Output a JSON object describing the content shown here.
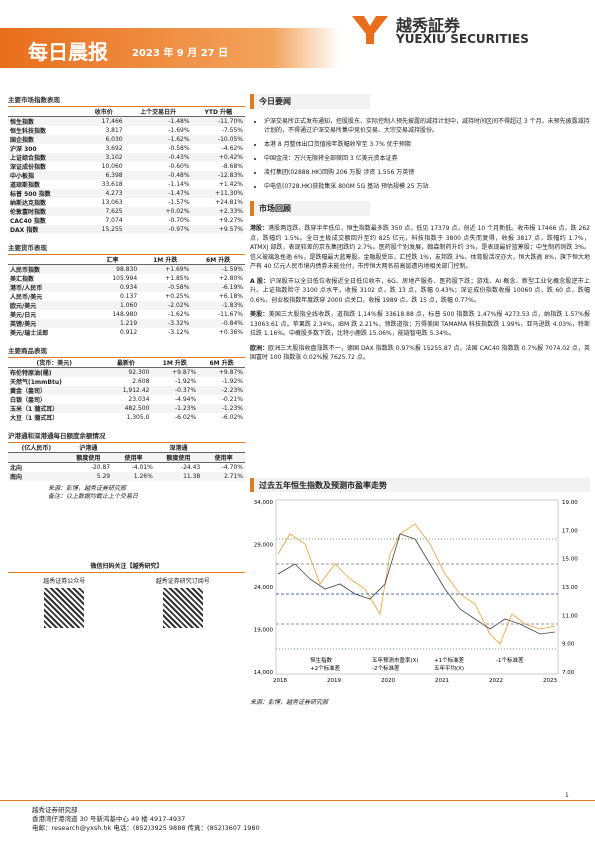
{
  "header": {
    "title": "每日晨报",
    "date": "2023 年 9 月 27 日",
    "logo_cn": "越秀証券",
    "logo_en": "YUEXIU SECURITIES"
  },
  "tables": [
    {
      "title": "主要市场指数表现",
      "header": [
        "",
        "收市价",
        "上个交易日升",
        "YTD 升幅"
      ],
      "rows": [
        [
          "恒生指数",
          "17,466",
          "-1.48%",
          "-11.70%"
        ],
        [
          "恒生科技指数",
          "3,817",
          "-1.69%",
          "-7.55%"
        ],
        [
          "国企指数",
          "6,030",
          "-1.62%",
          "-10.05%"
        ],
        [
          "沪深 300",
          "3,692",
          "-0.58%",
          "-4.62%"
        ],
        [
          "上证综合指数",
          "3,102",
          "-0.43%",
          "+0.42%"
        ],
        [
          "深证成份指数",
          "10,060",
          "-0.60%",
          "-8.68%"
        ],
        [
          "中小板指",
          "6,398",
          "-0.48%",
          "-12.83%"
        ],
        [
          "道琼斯指数",
          "33,618",
          "-1.14%",
          "+1.42%"
        ],
        [
          "标普 500 指数",
          "4,273",
          "-1.47%",
          "+11.30%"
        ],
        [
          "纳斯达克指数",
          "13,063",
          "-1.57%",
          "+24.81%"
        ],
        [
          "伦敦富时指数",
          "7,625",
          "+0.02%",
          "+2.33%"
        ],
        [
          "CAC40 指数",
          "7,074",
          "-0.70%",
          "+9.27%"
        ],
        [
          "DAX 指数",
          "15,255",
          "-0.97%",
          "+9.57%"
        ]
      ]
    },
    {
      "title": "主要货币表现",
      "header": [
        "",
        "汇率",
        "1M 升跌",
        "6M 升跌"
      ],
      "rows": [
        [
          "人民币指数",
          "98.830",
          "+1.69%",
          "-1.59%"
        ],
        [
          "美汇指数",
          "105.994",
          "+1.85%",
          "+2.80%"
        ],
        [
          "港币/人民币",
          "0.934",
          "-0.58%",
          "-6.19%"
        ],
        [
          "人民币/美元",
          "0.137",
          "+0.25%",
          "+6.18%"
        ],
        [
          "欧元/美元",
          "1.060",
          "-2.02%",
          "-1.83%"
        ],
        [
          "美元/日元",
          "148.980",
          "-1.62%",
          "-11.67%"
        ],
        [
          "英镑/美元",
          "1.219",
          "-3.32%",
          "-0.84%"
        ],
        [
          "美元/瑞士法郎",
          "0.912",
          "-3.12%",
          "+0.36%"
        ]
      ]
    },
    {
      "title": "主要商品表现",
      "header": [
        "(货币：美元)",
        "最新价",
        "1M 升跌",
        "6M 升跌"
      ],
      "rows": [
        [
          "布伦特原油(桶)",
          "92.300",
          "+9.87%",
          "+9.87%"
        ],
        [
          "天然气(1mmBtu)",
          "2.608",
          "-1.92%",
          "-1.92%"
        ],
        [
          "黄金（盎司）",
          "1,912.42",
          "-0.37%",
          "-2.23%"
        ],
        [
          "白银（盎司）",
          "23.034",
          "-4.94%",
          "-0.21%"
        ],
        [
          "玉米（1 蒲式耳）",
          "482.500",
          "-1.23%",
          "-1.23%"
        ],
        [
          "大豆（1 蒲式耳）",
          "1,305.0",
          "-6.02%",
          "-6.02%"
        ]
      ]
    },
    {
      "title": "沪港通和深港通每日额度余额情况",
      "header": [
        "(亿人民币)",
        "沪港通",
        "",
        "深港通",
        ""
      ],
      "subheader": [
        "",
        "额度使用",
        "使用率",
        "额度使用",
        "使用率"
      ],
      "rows": [
        [
          "北向",
          "-20.87",
          "-4.01%",
          "-24.43",
          "-4.70%"
        ],
        [
          "南向",
          "5.29",
          "1.26%",
          "11.38",
          "2.71%"
        ]
      ]
    }
  ],
  "notes": [
    "来源：彭博，越秀证券研究部",
    "备注：以上数据均截止上个交易日"
  ],
  "qr": {
    "title": "微信扫码关注【越秀研究】",
    "left": "越秀证券公众号",
    "right": "越秀证券研究订阅号"
  },
  "news": {
    "title": "今日要闻",
    "items": [
      "沪深交易所正式发布通知，控股股东、实际控制人预先披露的减持计划中，减持时间区间不得超过 3 个月，未预先披露减持计划的，不得通过沪深交易所集中竞价交易、大宗交易减持股份。",
      "本港 8 月整体出口货值按年跌幅收窄至 3.7% 优于预期",
      "中国金茂：万兴无限将全部赎回 3 亿美元资本证券",
      "凌打集团(02888.HK)回购 206 万股 涉资 1,556 万英镑",
      "中电信(0728.HK)获批集采 800M 5G 基站 预估规模 25 万站"
    ]
  },
  "review": {
    "title": "市场回顾",
    "paragraphs": [
      {
        "label": "港股：",
        "text": "港股两连跌，跌穿半年低位，恒生指数最多跌 350 点，低见 17379 点，创近 10 个月新低。收市报 17466 点，跌 262 点，跌幅约 1.5%。全日主板成交额回升至约 825 亿元，科技指数于 3800 点失而复得，收报 3817 点，跌幅约 1.7%，ATMXJ 部跌，表现较差的京东集团跌约 2.7%。医药股个别发展，翰森制药升约 3%，是表现最好蓝筹股；中生制药则跌 3%。信义玻璃急挫逾 6%，是跌幅最大蓝筹股。金融股受压，汇控跌 1%，友邦跌 3%。体育股活况亦大，恒大跌逾 8%，旗下恒大地产有 40 亿元人民币境内债券未能兑付，市传恒大两名前高层遭内地相关部门控制。"
      },
      {
        "label": "A 股：",
        "text": "沪深股市以全日低位收报近全日低位收市，6G、房地产服务、医药股下跌；游戏、AI 概念、新型工业化概念股逆市上升。上证指数险守 3100 点水平，收报 3102 点，跌 13 点，跌幅 0.43%；深证成份指数收报 10060 点，跌 60 点，跌幅 0.6%，创业板指数年度跌穿 2000 点关口，收报 1989 点，跌 15 点，跌幅 0.77%。"
      },
      {
        "label": "美股：",
        "text": "美国三大股指全线收跌，道指跌 1.14%报 33618.88 点，标普 500 指数跌 1.47%报 4273.53 点，纳指跌 1.57%报 13063.61 点。苹果跌 2.34%，IBM 跌 2.21%，领跌道指；万得美国 TAMAMA 科技指数跌 1.99%，亚马逊跌 4.03%，特斯拉跌 1.16%。中概股多数下跌，比特小鹿跌 15.06%，能链智电跌 5.34%。"
      },
      {
        "label": "欧洲：",
        "text": "欧洲三大股指收盘涨跌不一，德国 DAX 指数跌 0.97%报 15255.87 点，法国 CAC40 指数跌 0.7%报 7074.02 点，英国富时 100 指数涨 0.02%报 7625.72 点。"
      }
    ]
  },
  "figure": {
    "title": "过去五年恒生指数及预测市盈率走势",
    "left_ticks": [
      "34,000",
      "29,000",
      "24,000",
      "19,000",
      "14,000"
    ],
    "right_ticks": [
      "19.00",
      "17.00",
      "15.00",
      "13.00",
      "11.00",
      "9.00",
      "7.00"
    ],
    "x_ticks": [
      "2018",
      "2019",
      "2020",
      "2021",
      "2022",
      "2023"
    ],
    "legend": [
      "恒生指数",
      "五年预测市盈率(X)",
      "+1个标准差",
      "-1个标准差",
      "+2个标准差",
      "-2个标准差",
      "五年平均(X)"
    ],
    "source": "来源：彭博，越秀证券研究部"
  },
  "footer": {
    "company": "越秀证券研究部",
    "address": "香港湾仔港湾道 30 号新鸿基中心 49 楼 4917-4937",
    "contact": "电邮：research@yxsh.hk 电话：(852)3925 9888 传真：(852)3607 1980",
    "page": "1"
  }
}
